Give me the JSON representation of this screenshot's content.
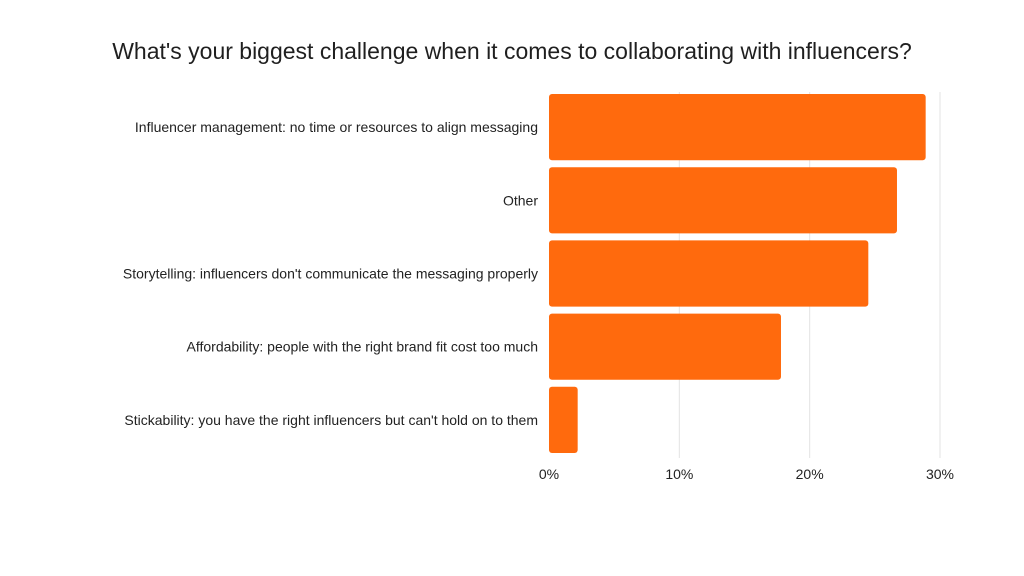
{
  "chart_data": {
    "type": "bar",
    "orientation": "horizontal",
    "title": "What's your biggest challenge when it comes to collaborating with influencers?",
    "categories": [
      "Influencer management: no time or resources to align messaging",
      "Other",
      "Storytelling: influencers don't communicate the messaging properly",
      "Affordability: people with the right brand fit cost too much",
      "Stickability: you have the right influencers but can't hold on to them"
    ],
    "values": [
      28.9,
      26.7,
      24.5,
      17.8,
      2.2
    ],
    "value_unit": "%",
    "xlim": [
      0,
      30
    ],
    "xticks": [
      0,
      10,
      20,
      30
    ],
    "xtick_labels": [
      "0%",
      "10%",
      "20%",
      "30%"
    ],
    "grid": true,
    "bar_color": "#FF6A0D",
    "grid_color": "#E3E3E3",
    "xlabel": "",
    "ylabel": ""
  }
}
